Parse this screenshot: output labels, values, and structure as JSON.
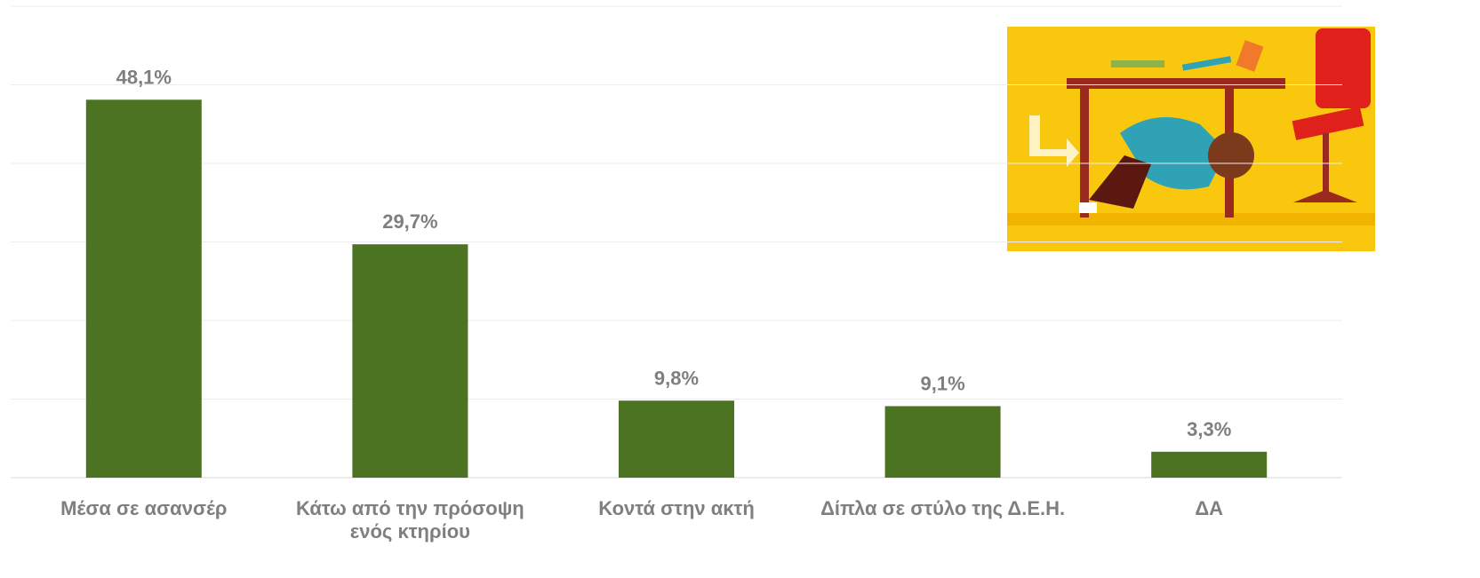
{
  "chart_data": {
    "type": "bar",
    "categories": [
      "Μέσα σε ασανσέρ",
      "Κάτω από την πρόσοψη ενός κτηρίου",
      "Κοντά στην ακτή",
      "Δίπλα σε στύλο της Δ.Ε.Η.",
      "ΔΑ"
    ],
    "values": [
      48.1,
      29.7,
      9.8,
      9.1,
      3.3
    ],
    "value_labels": [
      "48,1%",
      "29,7%",
      "9,8%",
      "9,1%",
      "3,3%"
    ],
    "color": "#4b7321",
    "ylim": [
      0,
      60
    ],
    "yticks": [
      0,
      10,
      20,
      30,
      40,
      50,
      60
    ],
    "grid": true
  }
}
